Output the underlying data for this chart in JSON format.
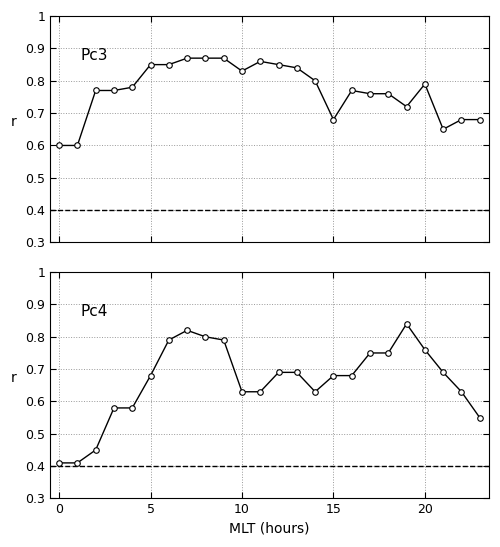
{
  "pc3_x": [
    0,
    1,
    2,
    3,
    4,
    5,
    6,
    7,
    8,
    9,
    10,
    11,
    12,
    13,
    14,
    15,
    16,
    17,
    18,
    19,
    20,
    21,
    22,
    23
  ],
  "pc3_y": [
    0.6,
    0.6,
    0.77,
    0.77,
    0.78,
    0.85,
    0.85,
    0.87,
    0.87,
    0.87,
    0.83,
    0.86,
    0.85,
    0.84,
    0.8,
    0.68,
    0.77,
    0.76,
    0.76,
    0.72,
    0.79,
    0.65,
    0.68,
    0.68
  ],
  "pc4_x": [
    0,
    1,
    2,
    3,
    4,
    5,
    6,
    7,
    8,
    9,
    10,
    11,
    12,
    13,
    14,
    15,
    16,
    17,
    18,
    19,
    20,
    21,
    22,
    23
  ],
  "pc4_y": [
    0.41,
    0.41,
    0.45,
    0.58,
    0.58,
    0.68,
    0.79,
    0.82,
    0.8,
    0.79,
    0.63,
    0.63,
    0.69,
    0.69,
    0.63,
    0.68,
    0.68,
    0.75,
    0.75,
    0.84,
    0.76,
    0.69,
    0.63,
    0.55
  ],
  "threshold": 0.4,
  "ylim": [
    0.3,
    1.0
  ],
  "xlim": [
    -0.5,
    23.5
  ],
  "xticks": [
    0,
    5,
    10,
    15,
    20
  ],
  "yticks": [
    0.3,
    0.4,
    0.5,
    0.6,
    0.7,
    0.8,
    0.9,
    1.0
  ],
  "ytick_labels": [
    "0.3",
    "0.4",
    "0.5",
    "0.6",
    "0.7",
    "0.8",
    "0.9",
    "1"
  ],
  "xlabel": "MLT (hours)",
  "ylabel": "r",
  "pc3_label": "Pc3",
  "pc4_label": "Pc4",
  "line_color": "#000000",
  "marker": "o",
  "marker_size": 4,
  "marker_facecolor": "white",
  "dashed_color": "#000000",
  "grid_color": "#999999",
  "background_color": "#ffffff"
}
